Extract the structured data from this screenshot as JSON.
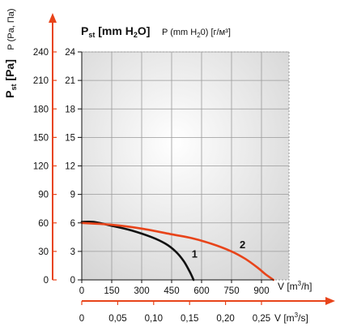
{
  "chart_data": {
    "type": "line",
    "ylabel_left": "Pst [Pa]",
    "yaxis_inner_title": "P (Pa, Па)",
    "header_bold": "Pst [mm H2O]",
    "header_normal": "P (mm H2O) [г/м³]",
    "x_unit_primary": "V [m³/h]",
    "x_unit_secondary": "V [m³/s]",
    "y_pa_ticks": [
      "0",
      "30",
      "60",
      "90",
      "120",
      "150",
      "180",
      "210",
      "240"
    ],
    "y_mm_ticks": [
      "0",
      "3",
      "6",
      "9",
      "12",
      "15",
      "18",
      "21",
      "24"
    ],
    "x_m3h_ticks": [
      "0",
      "150",
      "300",
      "450",
      "600",
      "750",
      "900"
    ],
    "x_m3s_ticks": [
      "0",
      "0,05",
      "0,10",
      "0,15",
      "0,20",
      "0,25"
    ],
    "xlim_m3h": [
      0,
      975
    ],
    "ylim_pa": [
      0,
      240
    ],
    "grid": true,
    "series": [
      {
        "name": "1",
        "color": "#111111",
        "x": [
          0,
          60,
          150,
          250,
          350,
          420,
          470,
          510,
          540,
          560
        ],
        "y": [
          61,
          61,
          57,
          52,
          45,
          38,
          30,
          20,
          9,
          0
        ]
      },
      {
        "name": "2",
        "color": "#e8441a",
        "x": [
          0,
          150,
          300,
          450,
          550,
          650,
          750,
          820,
          880,
          920,
          960
        ],
        "y": [
          60,
          58,
          54,
          48,
          44,
          38,
          30,
          22,
          13,
          6,
          0
        ]
      }
    ]
  },
  "colors": {
    "accent": "#e8441a",
    "curve1": "#111111",
    "grid": "#999999"
  }
}
